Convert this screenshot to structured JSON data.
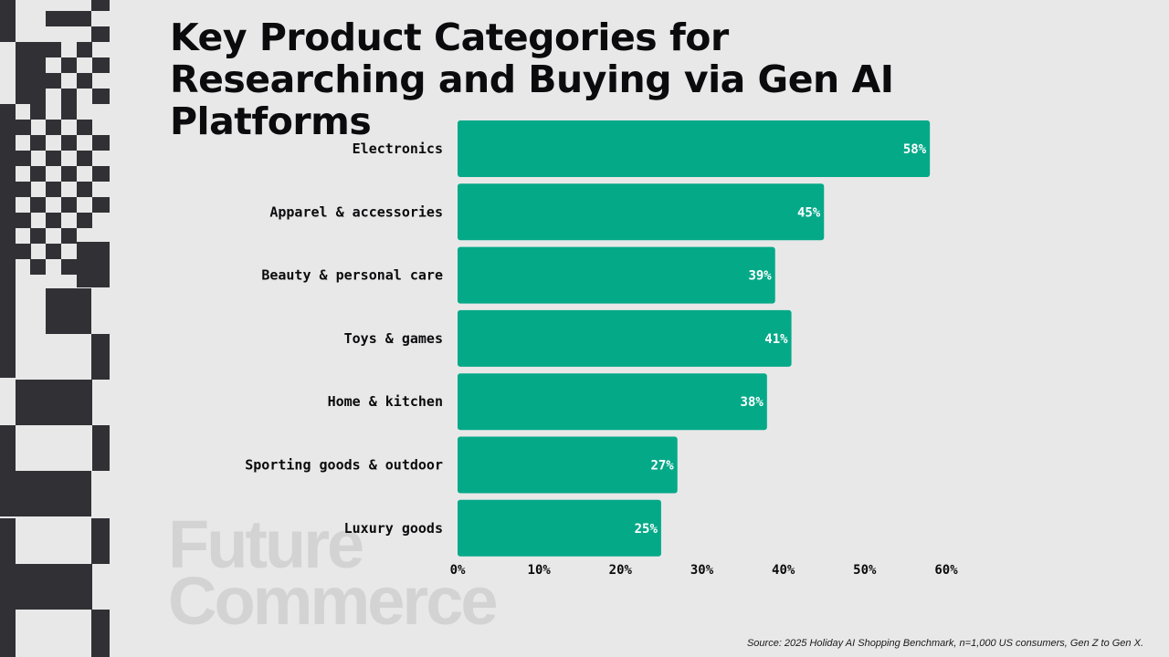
{
  "title": "Key Product Categories for Researching and Buying via Gen AI Platforms",
  "watermark": {
    "line1": "Future",
    "line2": "Commerce"
  },
  "source": "Source: 2025 Holiday AI Shopping Benchmark, n=1,000 US consumers, Gen Z to Gen X.",
  "colors": {
    "bar": "#04a988",
    "background": "#e8e8e8",
    "text": "#0b0b0d",
    "pattern": "#303035"
  },
  "chart_data": {
    "type": "bar",
    "orientation": "horizontal",
    "title": "Key Product Categories for Researching and Buying via Gen AI Platforms",
    "categories": [
      "Electronics",
      "Apparel & accessories",
      "Beauty & personal care",
      "Toys & games",
      "Home & kitchen",
      "Sporting goods & outdoor",
      "Luxury goods"
    ],
    "values": [
      58,
      45,
      39,
      41,
      38,
      27,
      25
    ],
    "value_labels": [
      "58%",
      "45%",
      "39%",
      "41%",
      "38%",
      "27%",
      "25%"
    ],
    "xlim": [
      0,
      60
    ],
    "x_ticks": [
      "0%",
      "10%",
      "20%",
      "30%",
      "40%",
      "50%",
      "60%"
    ],
    "xlabel": "",
    "ylabel": "",
    "grid": false,
    "legend": "none"
  }
}
